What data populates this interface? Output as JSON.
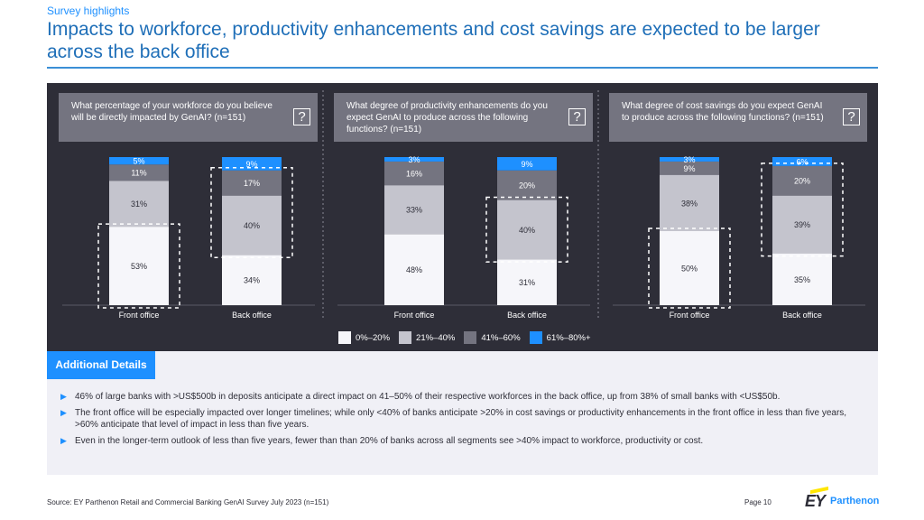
{
  "header": {
    "kicker": "Survey highlights",
    "title": "Impacts to workforce, productivity enhancements and cost savings are expected to be larger across the back office"
  },
  "colors": {
    "seg1": "#f6f6fa",
    "seg2": "#c4c4cd",
    "seg3": "#747480",
    "seg4": "#1e90ff",
    "accent": "#1e90ff",
    "dark_panel": "#2e2e38"
  },
  "questions": [
    {
      "text": "What percentage of your workforce do you believe will be directly impacted by GenAI? (n=151)",
      "help": "?"
    },
    {
      "text": "What degree of productivity enhancements do you expect GenAI to produce across the following functions? (n=151)",
      "help": "?"
    },
    {
      "text": "What degree of cost savings do you expect GenAI to produce across the following functions? (n=151)",
      "help": "?"
    }
  ],
  "legend": [
    "0%–20%",
    "21%–40%",
    "41%–60%",
    "61%–80%+"
  ],
  "chart_data": [
    {
      "type": "bar",
      "stacked": true,
      "title": "What percentage of your workforce do you believe will be directly impacted by GenAI? (n=151)",
      "categories": [
        "Front office",
        "Back office"
      ],
      "series": [
        {
          "name": "0%–20%",
          "values": [
            53,
            34
          ],
          "labels": [
            "53%",
            "34%"
          ]
        },
        {
          "name": "21%–40%",
          "values": [
            31,
            40
          ],
          "labels": [
            "31%",
            "40%"
          ]
        },
        {
          "name": "41%–60%",
          "values": [
            11,
            17
          ],
          "labels": [
            "11%",
            "17%"
          ]
        },
        {
          "name": "61%–80%+",
          "values": [
            5,
            9
          ],
          "labels": [
            "5%",
            "9%"
          ]
        }
      ],
      "highlight": [
        {
          "category": "Front office",
          "from": 0,
          "to": 0
        },
        {
          "category": "Back office",
          "from": 1,
          "to": 2
        }
      ],
      "ylim": [
        0,
        100
      ]
    },
    {
      "type": "bar",
      "stacked": true,
      "title": "What degree of productivity enhancements do you expect GenAI to produce across the following functions? (n=151)",
      "categories": [
        "Front office",
        "Back office"
      ],
      "series": [
        {
          "name": "0%–20%",
          "values": [
            48,
            31
          ],
          "labels": [
            "48%",
            "31%"
          ]
        },
        {
          "name": "21%–40%",
          "values": [
            33,
            40
          ],
          "labels": [
            "33%",
            "40%"
          ]
        },
        {
          "name": "41%–60%",
          "values": [
            16,
            20
          ],
          "labels": [
            "16%",
            "20%"
          ]
        },
        {
          "name": "61%–80%+",
          "values": [
            3,
            9
          ],
          "labels": [
            "3%",
            "9%"
          ]
        }
      ],
      "highlight": [
        {
          "category": "Back office",
          "from": 1,
          "to": 1
        }
      ],
      "ylim": [
        0,
        100
      ]
    },
    {
      "type": "bar",
      "stacked": true,
      "title": "What degree of cost savings do you expect GenAI to produce across the following functions? (n=151)",
      "categories": [
        "Front office",
        "Back office"
      ],
      "series": [
        {
          "name": "0%–20%",
          "values": [
            50,
            35
          ],
          "labels": [
            "50%",
            "35%"
          ]
        },
        {
          "name": "21%–40%",
          "values": [
            38,
            39
          ],
          "labels": [
            "38%",
            "39%"
          ]
        },
        {
          "name": "41%–60%",
          "values": [
            9,
            20
          ],
          "labels": [
            "9%",
            "20%"
          ]
        },
        {
          "name": "61%–80%+",
          "values": [
            3,
            6
          ],
          "labels": [
            "3%",
            "6%"
          ]
        }
      ],
      "highlight": [
        {
          "category": "Front office",
          "from": 0,
          "to": 0
        },
        {
          "category": "Back office",
          "from": 1,
          "to": 2
        }
      ],
      "ylim": [
        0,
        100
      ]
    }
  ],
  "details": {
    "tab": "Additional Details",
    "bullets": [
      "46% of large banks with >US$500b in deposits anticipate a direct impact on 41–50% of their respective workforces in the back office, up from 38% of small banks with <US$50b.",
      "The front office will be especially impacted over longer timelines; while only <40% of banks anticipate >20% in cost savings or productivity enhancements in the front office in less than five years, >60% anticipate that level of impact in less than five years.",
      "Even in the longer-term outlook of less than five years, fewer than than 20% of banks across all segments see >40% impact to workforce, productivity or cost."
    ]
  },
  "footer": {
    "source": "Source: EY Parthenon Retail and Commercial Banking GenAI Survey July 2023 (n=151)",
    "page": "Page 10",
    "logo_mark": "EY",
    "logo_name": "Parthenon"
  }
}
